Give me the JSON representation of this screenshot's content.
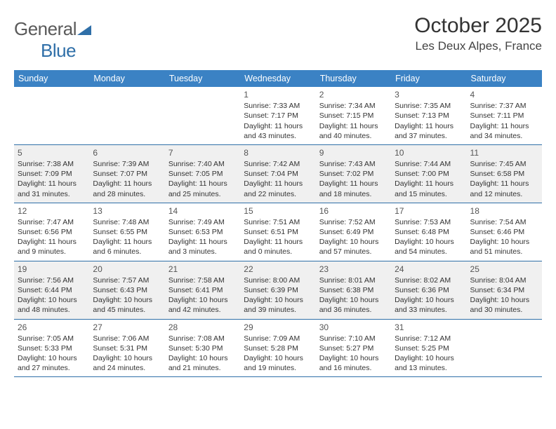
{
  "logo": {
    "textDark": "General",
    "textBlue": "Blue"
  },
  "header": {
    "month": "October 2025",
    "location": "Les Deux Alpes, France"
  },
  "colors": {
    "headerBg": "#3b82c4",
    "headerText": "#ffffff",
    "altRowBg": "#f0f0f0",
    "borderColor": "#2f6fa8",
    "logoDark": "#5a5a5a",
    "logoBlue": "#2f6fa8"
  },
  "calendar": {
    "type": "table",
    "dayNames": [
      "Sunday",
      "Monday",
      "Tuesday",
      "Wednesday",
      "Thursday",
      "Friday",
      "Saturday"
    ],
    "weeks": [
      {
        "alt": false,
        "cells": [
          null,
          null,
          null,
          {
            "n": "1",
            "sunrise": "7:33 AM",
            "sunset": "7:17 PM",
            "dayh": 11,
            "daym": 43
          },
          {
            "n": "2",
            "sunrise": "7:34 AM",
            "sunset": "7:15 PM",
            "dayh": 11,
            "daym": 40
          },
          {
            "n": "3",
            "sunrise": "7:35 AM",
            "sunset": "7:13 PM",
            "dayh": 11,
            "daym": 37
          },
          {
            "n": "4",
            "sunrise": "7:37 AM",
            "sunset": "7:11 PM",
            "dayh": 11,
            "daym": 34
          }
        ]
      },
      {
        "alt": true,
        "cells": [
          {
            "n": "5",
            "sunrise": "7:38 AM",
            "sunset": "7:09 PM",
            "dayh": 11,
            "daym": 31
          },
          {
            "n": "6",
            "sunrise": "7:39 AM",
            "sunset": "7:07 PM",
            "dayh": 11,
            "daym": 28
          },
          {
            "n": "7",
            "sunrise": "7:40 AM",
            "sunset": "7:05 PM",
            "dayh": 11,
            "daym": 25
          },
          {
            "n": "8",
            "sunrise": "7:42 AM",
            "sunset": "7:04 PM",
            "dayh": 11,
            "daym": 22
          },
          {
            "n": "9",
            "sunrise": "7:43 AM",
            "sunset": "7:02 PM",
            "dayh": 11,
            "daym": 18
          },
          {
            "n": "10",
            "sunrise": "7:44 AM",
            "sunset": "7:00 PM",
            "dayh": 11,
            "daym": 15
          },
          {
            "n": "11",
            "sunrise": "7:45 AM",
            "sunset": "6:58 PM",
            "dayh": 11,
            "daym": 12
          }
        ]
      },
      {
        "alt": false,
        "cells": [
          {
            "n": "12",
            "sunrise": "7:47 AM",
            "sunset": "6:56 PM",
            "dayh": 11,
            "daym": 9
          },
          {
            "n": "13",
            "sunrise": "7:48 AM",
            "sunset": "6:55 PM",
            "dayh": 11,
            "daym": 6
          },
          {
            "n": "14",
            "sunrise": "7:49 AM",
            "sunset": "6:53 PM",
            "dayh": 11,
            "daym": 3
          },
          {
            "n": "15",
            "sunrise": "7:51 AM",
            "sunset": "6:51 PM",
            "dayh": 11,
            "daym": 0
          },
          {
            "n": "16",
            "sunrise": "7:52 AM",
            "sunset": "6:49 PM",
            "dayh": 10,
            "daym": 57
          },
          {
            "n": "17",
            "sunrise": "7:53 AM",
            "sunset": "6:48 PM",
            "dayh": 10,
            "daym": 54
          },
          {
            "n": "18",
            "sunrise": "7:54 AM",
            "sunset": "6:46 PM",
            "dayh": 10,
            "daym": 51
          }
        ]
      },
      {
        "alt": true,
        "cells": [
          {
            "n": "19",
            "sunrise": "7:56 AM",
            "sunset": "6:44 PM",
            "dayh": 10,
            "daym": 48
          },
          {
            "n": "20",
            "sunrise": "7:57 AM",
            "sunset": "6:43 PM",
            "dayh": 10,
            "daym": 45
          },
          {
            "n": "21",
            "sunrise": "7:58 AM",
            "sunset": "6:41 PM",
            "dayh": 10,
            "daym": 42
          },
          {
            "n": "22",
            "sunrise": "8:00 AM",
            "sunset": "6:39 PM",
            "dayh": 10,
            "daym": 39
          },
          {
            "n": "23",
            "sunrise": "8:01 AM",
            "sunset": "6:38 PM",
            "dayh": 10,
            "daym": 36
          },
          {
            "n": "24",
            "sunrise": "8:02 AM",
            "sunset": "6:36 PM",
            "dayh": 10,
            "daym": 33
          },
          {
            "n": "25",
            "sunrise": "8:04 AM",
            "sunset": "6:34 PM",
            "dayh": 10,
            "daym": 30
          }
        ]
      },
      {
        "alt": false,
        "cells": [
          {
            "n": "26",
            "sunrise": "7:05 AM",
            "sunset": "5:33 PM",
            "dayh": 10,
            "daym": 27
          },
          {
            "n": "27",
            "sunrise": "7:06 AM",
            "sunset": "5:31 PM",
            "dayh": 10,
            "daym": 24
          },
          {
            "n": "28",
            "sunrise": "7:08 AM",
            "sunset": "5:30 PM",
            "dayh": 10,
            "daym": 21
          },
          {
            "n": "29",
            "sunrise": "7:09 AM",
            "sunset": "5:28 PM",
            "dayh": 10,
            "daym": 19
          },
          {
            "n": "30",
            "sunrise": "7:10 AM",
            "sunset": "5:27 PM",
            "dayh": 10,
            "daym": 16
          },
          {
            "n": "31",
            "sunrise": "7:12 AM",
            "sunset": "5:25 PM",
            "dayh": 10,
            "daym": 13
          },
          null
        ]
      }
    ]
  }
}
